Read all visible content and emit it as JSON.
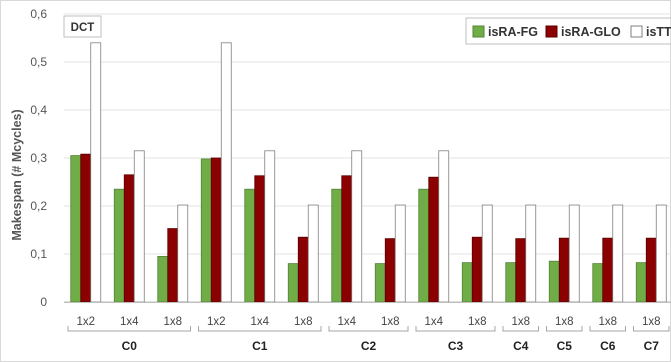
{
  "chart_data": {
    "type": "bar",
    "tag": "DCT",
    "ylabel": "Makespan (# Mcycles)",
    "ylim": [
      0,
      0.6
    ],
    "yticks": [
      "0",
      "0,1",
      "0,2",
      "0,3",
      "0,4",
      "0,5",
      "0,6"
    ],
    "grid": true,
    "legend_position": "top-right",
    "series": [
      {
        "name": "isRA-FG",
        "color": "#70AD47"
      },
      {
        "name": "isRA-GLO",
        "color": "#8B0000"
      },
      {
        "name": "isTT",
        "color": "#FFFFFF"
      }
    ],
    "groups": [
      {
        "label": "C0",
        "categories": [
          {
            "label": "1x2",
            "values": [
              0.305,
              0.308,
              0.54
            ]
          },
          {
            "label": "1x4",
            "values": [
              0.235,
              0.265,
              0.315
            ]
          },
          {
            "label": "1x8",
            "values": [
              0.095,
              0.153,
              0.202
            ]
          }
        ]
      },
      {
        "label": "C1",
        "categories": [
          {
            "label": "1x2",
            "values": [
              0.298,
              0.3,
              0.54
            ]
          },
          {
            "label": "1x4",
            "values": [
              0.235,
              0.263,
              0.315
            ]
          },
          {
            "label": "1x8",
            "values": [
              0.08,
              0.135,
              0.202
            ]
          }
        ]
      },
      {
        "label": "C2",
        "categories": [
          {
            "label": "1x4",
            "values": [
              0.235,
              0.263,
              0.315
            ]
          },
          {
            "label": "1x8",
            "values": [
              0.08,
              0.132,
              0.202
            ]
          }
        ]
      },
      {
        "label": "C3",
        "categories": [
          {
            "label": "1x4",
            "values": [
              0.235,
              0.26,
              0.315
            ]
          },
          {
            "label": "1x8",
            "values": [
              0.082,
              0.135,
              0.202
            ]
          }
        ]
      },
      {
        "label": "C4",
        "categories": [
          {
            "label": "1x8",
            "values": [
              0.082,
              0.132,
              0.202
            ]
          }
        ]
      },
      {
        "label": "C5",
        "categories": [
          {
            "label": "1x8",
            "values": [
              0.085,
              0.133,
              0.202
            ]
          }
        ]
      },
      {
        "label": "C6",
        "categories": [
          {
            "label": "1x8",
            "values": [
              0.08,
              0.133,
              0.202
            ]
          }
        ]
      },
      {
        "label": "C7",
        "categories": [
          {
            "label": "1x8",
            "values": [
              0.082,
              0.133,
              0.202
            ]
          }
        ]
      }
    ]
  }
}
